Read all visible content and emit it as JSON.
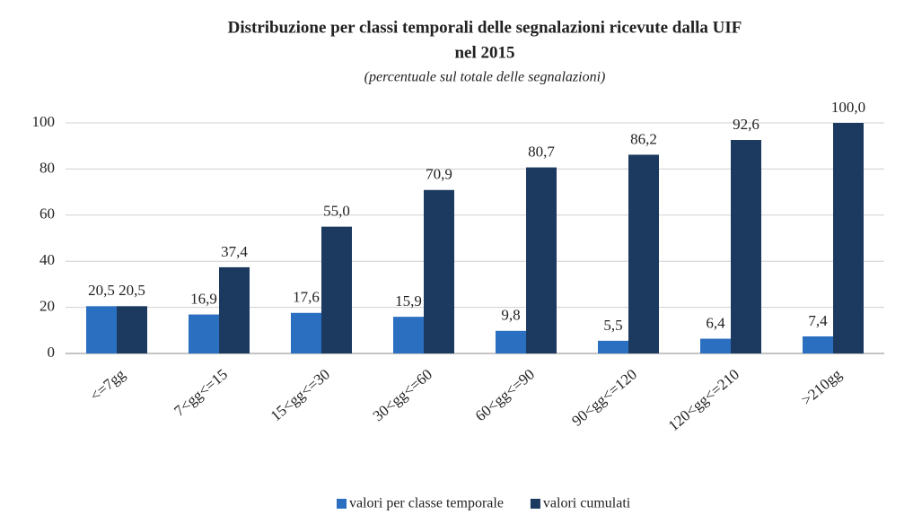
{
  "chart_data": {
    "type": "bar",
    "title": [
      "Distribuzione per classi temporali delle segnalazioni ricevute dalla UIF",
      "nel 2015"
    ],
    "subtitle": "(percentuale sul totale delle segnalazioni)",
    "categories": [
      "<=7gg",
      "7<gg<=15",
      "15<gg<=30",
      "30<gg<=60",
      "60<gg<=90",
      "90<gg<=120",
      "120<gg<=210",
      ">210gg"
    ],
    "series": [
      {
        "name": "valori per classe temporale",
        "color": "#2b6fc0",
        "values": [
          20.5,
          16.9,
          17.6,
          15.9,
          9.8,
          5.5,
          6.4,
          7.4
        ],
        "value_labels": [
          "20,5",
          "16,9",
          "17,6",
          "15,9",
          "9,8",
          "5,5",
          "6,4",
          "7,4"
        ]
      },
      {
        "name": "valori cumulati",
        "color": "#1c3a5f",
        "values": [
          20.5,
          37.4,
          55.0,
          70.9,
          80.7,
          86.2,
          92.6,
          100.0
        ],
        "value_labels": [
          "20,5",
          "37,4",
          "55,0",
          "70,9",
          "80,7",
          "86,2",
          "92,6",
          "100,0"
        ]
      }
    ],
    "ylim": [
      0,
      100
    ],
    "yticks": [
      0,
      20,
      40,
      60,
      80,
      100
    ],
    "grid": true,
    "legend": "bottom"
  }
}
